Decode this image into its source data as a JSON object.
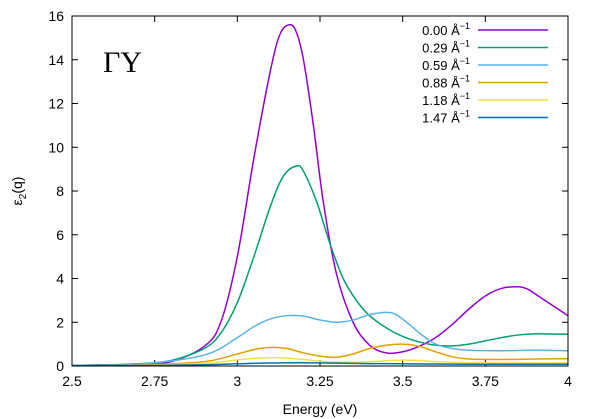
{
  "chart_data": {
    "type": "line",
    "title": "",
    "annotation": "ΓY",
    "xlabel": "Energy (eV)",
    "ylabel_main": "ε",
    "ylabel_sub": "2",
    "ylabel_rest": "(q)",
    "xlim": [
      2.5,
      4.0
    ],
    "ylim": [
      0,
      16
    ],
    "xticks": [
      2.5,
      2.75,
      3,
      3.25,
      3.5,
      3.75,
      4
    ],
    "xtick_labels": [
      "2.5",
      "2.75",
      "3",
      "3.25",
      "3.5",
      "3.75",
      "4"
    ],
    "yticks": [
      0,
      2,
      4,
      6,
      8,
      10,
      12,
      14,
      16
    ],
    "ytick_labels": [
      "0",
      "2",
      "4",
      "6",
      "8",
      "10",
      "12",
      "14",
      "16"
    ],
    "grid": false,
    "legend_position": "top-right",
    "legend_unit": "Å",
    "legend_unit_exp": "−1",
    "series": [
      {
        "name": "0.00",
        "color": "#9400d3",
        "x": [
          2.5,
          2.6,
          2.7,
          2.8,
          2.9,
          2.95,
          3.0,
          3.05,
          3.1,
          3.13,
          3.16,
          3.18,
          3.2,
          3.23,
          3.26,
          3.3,
          3.35,
          3.4,
          3.45,
          3.5,
          3.55,
          3.6,
          3.65,
          3.7,
          3.75,
          3.8,
          3.85,
          3.88,
          3.9,
          3.95,
          4.0
        ],
        "y": [
          0.03,
          0.05,
          0.08,
          0.2,
          0.9,
          2.0,
          5.0,
          9.5,
          13.5,
          15.2,
          15.6,
          15.2,
          14.0,
          11.0,
          7.5,
          4.2,
          2.0,
          0.95,
          0.6,
          0.65,
          0.9,
          1.3,
          1.9,
          2.6,
          3.2,
          3.55,
          3.62,
          3.5,
          3.3,
          2.8,
          2.3
        ]
      },
      {
        "name": "0.29",
        "color": "#009e73",
        "x": [
          2.5,
          2.6,
          2.7,
          2.8,
          2.9,
          2.95,
          3.0,
          3.05,
          3.1,
          3.14,
          3.18,
          3.2,
          3.24,
          3.28,
          3.32,
          3.36,
          3.4,
          3.45,
          3.5,
          3.55,
          3.6,
          3.65,
          3.7,
          3.75,
          3.8,
          3.85,
          3.9,
          3.95,
          4.0
        ],
        "y": [
          0.03,
          0.05,
          0.1,
          0.25,
          0.8,
          1.5,
          2.9,
          5.0,
          7.3,
          8.7,
          9.15,
          8.9,
          7.5,
          5.6,
          4.0,
          3.0,
          2.3,
          1.75,
          1.35,
          1.1,
          0.95,
          0.92,
          1.0,
          1.15,
          1.3,
          1.42,
          1.47,
          1.46,
          1.45
        ]
      },
      {
        "name": "0.59",
        "color": "#56b4e9",
        "x": [
          2.5,
          2.7,
          2.9,
          3.0,
          3.05,
          3.1,
          3.15,
          3.2,
          3.25,
          3.3,
          3.35,
          3.4,
          3.45,
          3.48,
          3.52,
          3.56,
          3.6,
          3.65,
          3.7,
          3.8,
          3.9,
          4.0
        ],
        "y": [
          0.02,
          0.08,
          0.5,
          1.3,
          1.8,
          2.15,
          2.3,
          2.28,
          2.1,
          2.0,
          2.1,
          2.35,
          2.45,
          2.35,
          1.9,
          1.4,
          1.0,
          0.8,
          0.72,
          0.7,
          0.72,
          0.7
        ]
      },
      {
        "name": "0.88",
        "color": "#e69f00",
        "x": [
          2.5,
          2.7,
          2.9,
          3.0,
          3.05,
          3.1,
          3.15,
          3.2,
          3.25,
          3.3,
          3.35,
          3.4,
          3.45,
          3.5,
          3.55,
          3.6,
          3.65,
          3.7,
          3.8,
          3.9,
          4.0
        ],
        "y": [
          0.01,
          0.04,
          0.2,
          0.55,
          0.75,
          0.85,
          0.8,
          0.6,
          0.45,
          0.4,
          0.55,
          0.8,
          0.95,
          1.0,
          0.9,
          0.65,
          0.42,
          0.32,
          0.3,
          0.32,
          0.33
        ]
      },
      {
        "name": "1.18",
        "color": "#f0e442",
        "x": [
          2.5,
          2.7,
          2.9,
          3.0,
          3.05,
          3.1,
          3.15,
          3.2,
          3.25,
          3.3,
          3.35,
          3.4,
          3.45,
          3.5,
          3.55,
          3.6,
          3.7,
          3.8,
          3.9,
          4.0
        ],
        "y": [
          0.01,
          0.03,
          0.12,
          0.28,
          0.35,
          0.38,
          0.36,
          0.3,
          0.22,
          0.18,
          0.17,
          0.2,
          0.24,
          0.27,
          0.25,
          0.2,
          0.15,
          0.14,
          0.14,
          0.15
        ]
      },
      {
        "name": "1.47",
        "color": "#0072b2",
        "x": [
          2.5,
          2.7,
          2.9,
          3.0,
          3.1,
          3.2,
          3.3,
          3.4,
          3.5,
          3.6,
          3.7,
          3.8,
          3.9,
          4.0
        ],
        "y": [
          0.01,
          0.02,
          0.06,
          0.1,
          0.14,
          0.15,
          0.13,
          0.11,
          0.1,
          0.09,
          0.08,
          0.08,
          0.08,
          0.08
        ]
      }
    ]
  }
}
